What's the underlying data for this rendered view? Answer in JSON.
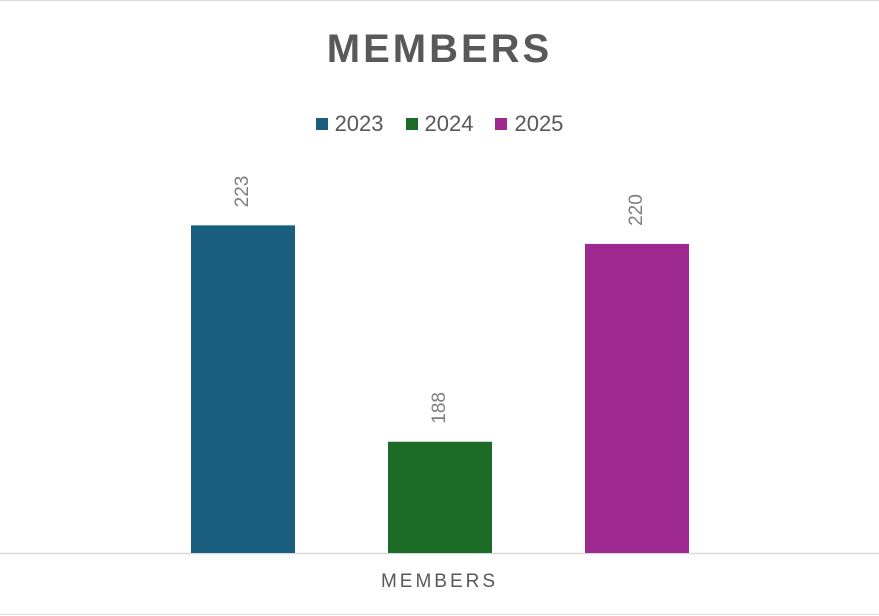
{
  "chart_data": {
    "type": "bar",
    "title": "MEMBERS",
    "categories": [
      "MEMBERS"
    ],
    "series": [
      {
        "name": "2023",
        "values": [
          223
        ],
        "color": "#1a5e80"
      },
      {
        "name": "2024",
        "values": [
          188
        ],
        "color": "#1c6b27"
      },
      {
        "name": "2025",
        "values": [
          220
        ],
        "color": "#9e2a91"
      }
    ],
    "xlabel": "MEMBERS",
    "ylabel": "",
    "ylim": [
      170,
      225
    ],
    "grid": false,
    "legend_position": "top",
    "data_labels": true
  }
}
